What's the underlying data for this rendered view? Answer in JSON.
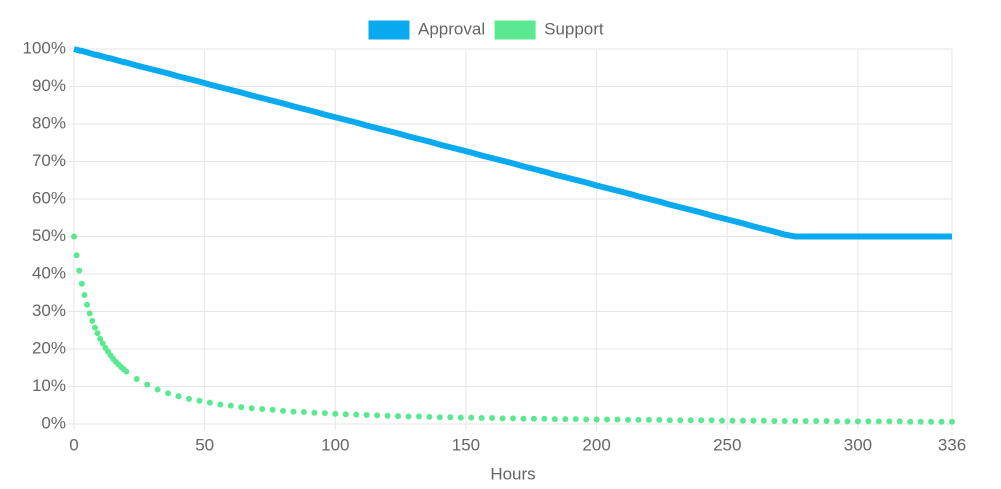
{
  "chart_data": {
    "type": "line",
    "xlabel": "Hours",
    "x": [
      0,
      1,
      2,
      3,
      4,
      5,
      6,
      7,
      8,
      9,
      10,
      11,
      12,
      13,
      14,
      15,
      16,
      17,
      18,
      19,
      20,
      24,
      28,
      32,
      36,
      40,
      44,
      48,
      52,
      56,
      60,
      64,
      68,
      72,
      76,
      80,
      84,
      88,
      92,
      96,
      100,
      104,
      108,
      112,
      116,
      120,
      124,
      128,
      132,
      136,
      140,
      144,
      148,
      152,
      156,
      160,
      164,
      168,
      172,
      176,
      180,
      184,
      188,
      192,
      196,
      200,
      204,
      208,
      212,
      216,
      220,
      224,
      228,
      232,
      236,
      240,
      244,
      248,
      252,
      256,
      260,
      264,
      268,
      272,
      276,
      280,
      284,
      288,
      292,
      296,
      300,
      304,
      308,
      312,
      316,
      320,
      324,
      328,
      332,
      336
    ],
    "series": [
      {
        "name": "Approval",
        "color": "#0aaaf0",
        "style": "line",
        "values": [
          100,
          99.8,
          99.6,
          99.5,
          99.3,
          99.1,
          98.9,
          98.7,
          98.5,
          98.4,
          98.2,
          98,
          97.8,
          97.6,
          97.5,
          97.3,
          97.1,
          96.9,
          96.7,
          96.5,
          96.4,
          95.6,
          94.9,
          94.2,
          93.5,
          92.7,
          92,
          91.3,
          90.5,
          89.8,
          89.1,
          88.4,
          87.6,
          86.9,
          86.2,
          85.5,
          84.7,
          84,
          83.3,
          82.5,
          81.8,
          81.1,
          80.4,
          79.6,
          78.9,
          78.2,
          77.5,
          76.7,
          76,
          75.3,
          74.5,
          73.8,
          73.1,
          72.4,
          71.6,
          70.9,
          70.2,
          69.5,
          68.7,
          68,
          67.3,
          66.5,
          65.8,
          65.1,
          64.4,
          63.6,
          62.9,
          62.2,
          61.5,
          60.7,
          60,
          59.3,
          58.5,
          57.8,
          57.1,
          56.4,
          55.6,
          54.9,
          54.2,
          53.5,
          52.7,
          52,
          51.3,
          50.5,
          50,
          50,
          50,
          50,
          50,
          50,
          50,
          50,
          50,
          50,
          50,
          50,
          50,
          50,
          50,
          50
        ]
      },
      {
        "name": "Support",
        "color": "#5ae890",
        "style": "points",
        "values": [
          50,
          45,
          40.9,
          37.4,
          34.4,
          31.8,
          29.5,
          27.5,
          25.7,
          24.2,
          22.7,
          21.5,
          20.3,
          19.3,
          18.3,
          17.4,
          16.6,
          15.9,
          15.2,
          14.6,
          14,
          12,
          10.5,
          9.2,
          8.2,
          7.4,
          6.7,
          6.2,
          5.7,
          5.2,
          4.9,
          4.5,
          4.2,
          4,
          3.8,
          3.5,
          3.3,
          3.2,
          3,
          2.9,
          2.7,
          2.6,
          2.5,
          2.4,
          2.3,
          2.2,
          2.1,
          2,
          2,
          1.9,
          1.8,
          1.8,
          1.7,
          1.7,
          1.6,
          1.6,
          1.5,
          1.5,
          1.4,
          1.4,
          1.4,
          1.3,
          1.3,
          1.3,
          1.2,
          1.2,
          1.2,
          1.2,
          1.1,
          1.1,
          1.1,
          1.1,
          1,
          1,
          1,
          1,
          1,
          0.9,
          0.9,
          0.9,
          0.9,
          0.9,
          0.8,
          0.8,
          0.8,
          0.8,
          0.8,
          0.8,
          0.7,
          0.7,
          0.7,
          0.7,
          0.7,
          0.7,
          0.7,
          0.6,
          0.6,
          0.6,
          0.6,
          0.6
        ]
      }
    ],
    "xlim": [
      0,
      336
    ],
    "xticks": [
      0,
      50,
      100,
      150,
      200,
      250,
      300,
      336
    ],
    "ylim": [
      0,
      100
    ],
    "yticks": [
      {
        "value": 0,
        "label": "0%"
      },
      {
        "value": 10,
        "label": "10%"
      },
      {
        "value": 20,
        "label": "20%"
      },
      {
        "value": 30,
        "label": "30%"
      },
      {
        "value": 40,
        "label": "40%"
      },
      {
        "value": 50,
        "label": "50%"
      },
      {
        "value": 60,
        "label": "60%"
      },
      {
        "value": 70,
        "label": "70%"
      },
      {
        "value": 80,
        "label": "80%"
      },
      {
        "value": 90,
        "label": "90%"
      },
      {
        "value": 100,
        "label": "100%"
      }
    ],
    "grid": true,
    "legend": "top"
  }
}
